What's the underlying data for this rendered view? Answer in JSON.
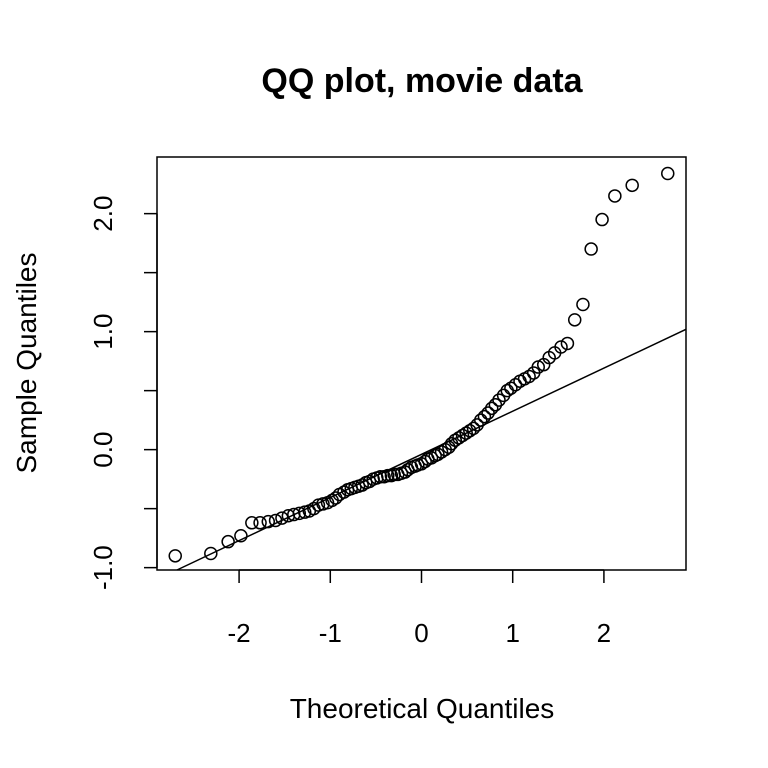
{
  "chart_data": {
    "type": "scatter",
    "title": "QQ plot, movie data",
    "xlabel": "Theoretical Quantiles",
    "ylabel": "Sample Quantiles",
    "xlim": [
      -2.9,
      2.9
    ],
    "ylim": [
      -1.02,
      2.48
    ],
    "xticks": [
      -2,
      -1,
      0,
      1,
      2
    ],
    "xtick_labels": [
      "-2",
      "-1",
      "0",
      "1",
      "2"
    ],
    "yticks": [
      -1.0,
      -0.5,
      0.0,
      0.5,
      1.0,
      1.5,
      2.0
    ],
    "ytick_labels": [
      "-1.0",
      "",
      "0.0",
      "",
      "1.0",
      "",
      "2.0"
    ],
    "grid": false,
    "legend": "none",
    "marker": "open-circle",
    "reference_line": {
      "x": [
        -2.9,
        2.9
      ],
      "y": [
        -1.1,
        1.02
      ]
    },
    "points": {
      "x": [
        -2.7,
        -2.31,
        -2.12,
        -1.98,
        -1.86,
        -1.77,
        -1.68,
        -1.6,
        -1.53,
        -1.46,
        -1.4,
        -1.34,
        -1.28,
        -1.23,
        -1.18,
        -1.13,
        -1.08,
        -1.03,
        -0.98,
        -0.94,
        -0.9,
        -0.85,
        -0.81,
        -0.77,
        -0.73,
        -0.69,
        -0.65,
        -0.61,
        -0.57,
        -0.53,
        -0.49,
        -0.45,
        -0.41,
        -0.37,
        -0.33,
        -0.3,
        -0.26,
        -0.22,
        -0.18,
        -0.15,
        -0.11,
        -0.07,
        -0.04,
        0.0,
        0.04,
        0.07,
        0.11,
        0.15,
        0.18,
        0.22,
        0.26,
        0.3,
        0.33,
        0.37,
        0.41,
        0.45,
        0.49,
        0.53,
        0.57,
        0.61,
        0.65,
        0.69,
        0.73,
        0.77,
        0.81,
        0.85,
        0.9,
        0.94,
        0.98,
        1.03,
        1.08,
        1.13,
        1.18,
        1.23,
        1.28,
        1.34,
        1.4,
        1.46,
        1.53,
        1.6,
        1.68,
        1.77,
        1.86,
        1.98,
        2.12,
        2.31,
        2.7
      ],
      "y": [
        -0.9,
        -0.88,
        -0.78,
        -0.73,
        -0.62,
        -0.62,
        -0.61,
        -0.6,
        -0.58,
        -0.56,
        -0.55,
        -0.54,
        -0.53,
        -0.52,
        -0.5,
        -0.47,
        -0.46,
        -0.45,
        -0.43,
        -0.41,
        -0.38,
        -0.36,
        -0.34,
        -0.33,
        -0.32,
        -0.31,
        -0.3,
        -0.28,
        -0.27,
        -0.25,
        -0.24,
        -0.23,
        -0.23,
        -0.22,
        -0.22,
        -0.21,
        -0.21,
        -0.2,
        -0.19,
        -0.17,
        -0.15,
        -0.14,
        -0.13,
        -0.12,
        -0.1,
        -0.08,
        -0.07,
        -0.05,
        -0.04,
        -0.02,
        0.0,
        0.02,
        0.05,
        0.08,
        0.1,
        0.12,
        0.14,
        0.16,
        0.18,
        0.21,
        0.25,
        0.28,
        0.31,
        0.35,
        0.38,
        0.42,
        0.46,
        0.5,
        0.52,
        0.55,
        0.58,
        0.6,
        0.62,
        0.65,
        0.7,
        0.72,
        0.78,
        0.82,
        0.87,
        0.9,
        1.1,
        1.23,
        1.7,
        1.95,
        2.15,
        2.24,
        2.34
      ]
    }
  }
}
